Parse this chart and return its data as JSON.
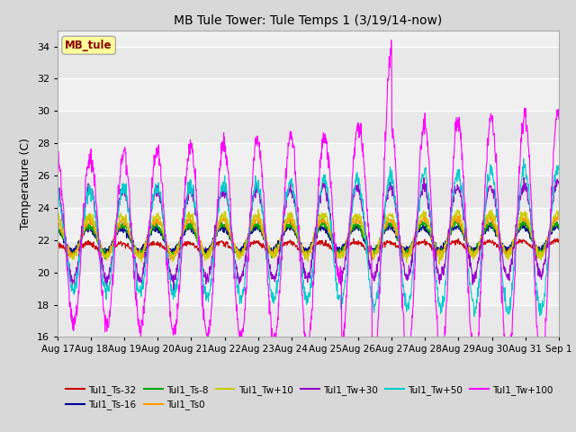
{
  "title": "MB Tule Tower: Tule Temps 1 (3/19/14-now)",
  "ylabel": "Temperature (C)",
  "ylim": [
    16,
    35
  ],
  "yticks": [
    16,
    18,
    20,
    22,
    24,
    26,
    28,
    30,
    32,
    34
  ],
  "xlabel_dates": [
    "Aug 17",
    "Aug 18",
    "Aug 19",
    "Aug 20",
    "Aug 21",
    "Aug 22",
    "Aug 23",
    "Aug 24",
    "Aug 25",
    "Aug 26",
    "Aug 27",
    "Aug 28",
    "Aug 29",
    "Aug 30",
    "Aug 31",
    "Sep 1"
  ],
  "series": [
    {
      "label": "Tul1_Ts-32",
      "color": "#cc0000"
    },
    {
      "label": "Tul1_Ts-16",
      "color": "#000099"
    },
    {
      "label": "Tul1_Ts-8",
      "color": "#00aa00"
    },
    {
      "label": "Tul1_Ts0",
      "color": "#ff9900"
    },
    {
      "label": "Tul1_Tw+10",
      "color": "#cccc00"
    },
    {
      "label": "Tul1_Tw+30",
      "color": "#9900cc"
    },
    {
      "label": "Tul1_Tw+50",
      "color": "#00cccc"
    },
    {
      "label": "Tul1_Tw+100",
      "color": "#ff00ff"
    }
  ],
  "annotation_box": {
    "text": "MB_tule",
    "color": "#8b0000",
    "bg": "#ffff99"
  },
  "fig_bg_color": "#d8d8d8",
  "plot_bg_color": "#f0f0f0",
  "grid_color": "#ffffff"
}
